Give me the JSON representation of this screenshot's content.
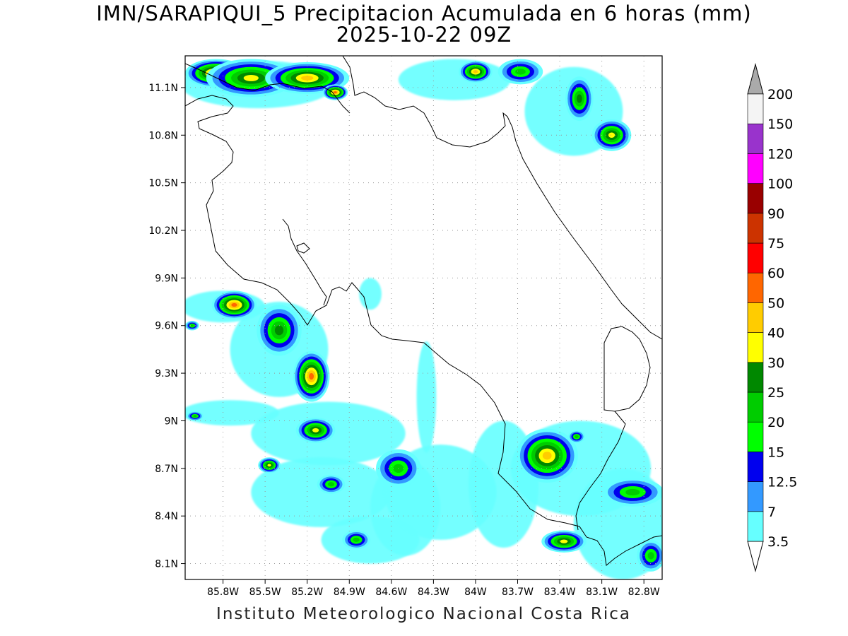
{
  "title": {
    "line1": "IMN/SARAPIQUI_5 Precipitacion Acumulada en 6 horas (mm)",
    "line2": "2025-10-22 09Z"
  },
  "credit": "Instituto Meteorologico Nacional Costa Rica",
  "map": {
    "lon_range": [
      -86.07,
      -82.67
    ],
    "lat_range": [
      8.0,
      11.3
    ],
    "lat_ticks": [
      {
        "value": 11.1,
        "label": "11.1N"
      },
      {
        "value": 10.8,
        "label": "10.8N"
      },
      {
        "value": 10.5,
        "label": "10.5N"
      },
      {
        "value": 10.2,
        "label": "10.2N"
      },
      {
        "value": 9.9,
        "label": "9.9N"
      },
      {
        "value": 9.6,
        "label": "9.6N"
      },
      {
        "value": 9.3,
        "label": "9.3N"
      },
      {
        "value": 9.0,
        "label": "9N"
      },
      {
        "value": 8.7,
        "label": "8.7N"
      },
      {
        "value": 8.4,
        "label": "8.4N"
      },
      {
        "value": 8.1,
        "label": "8.1N"
      }
    ],
    "lon_ticks": [
      {
        "value": -85.8,
        "label": "85.8W"
      },
      {
        "value": -85.5,
        "label": "85.5W"
      },
      {
        "value": -85.2,
        "label": "85.2W"
      },
      {
        "value": -84.9,
        "label": "84.9W"
      },
      {
        "value": -84.6,
        "label": "84.6W"
      },
      {
        "value": -84.3,
        "label": "84.3W"
      },
      {
        "value": -84.0,
        "label": "84W"
      },
      {
        "value": -83.7,
        "label": "83.7W"
      },
      {
        "value": -83.4,
        "label": "83.4W"
      },
      {
        "value": -83.1,
        "label": "83.1W"
      },
      {
        "value": -82.8,
        "label": "82.8W"
      }
    ],
    "grid": "dotted"
  },
  "colorbar": {
    "levels": [
      {
        "label": "3.5",
        "color": "#66ffff"
      },
      {
        "label": "7",
        "color": "#3399ff"
      },
      {
        "label": "12.5",
        "color": "#0000ee"
      },
      {
        "label": "15",
        "color": "#00ff00"
      },
      {
        "label": "20",
        "color": "#00cc00"
      },
      {
        "label": "25",
        "color": "#008800"
      },
      {
        "label": "30",
        "color": "#ffff00"
      },
      {
        "label": "40",
        "color": "#ffcc00"
      },
      {
        "label": "50",
        "color": "#ff6600"
      },
      {
        "label": "60",
        "color": "#ff0000"
      },
      {
        "label": "75",
        "color": "#cc3300"
      },
      {
        "label": "90",
        "color": "#990000"
      },
      {
        "label": "100",
        "color": "#ff00ff"
      },
      {
        "label": "120",
        "color": "#9933cc"
      },
      {
        "label": "150",
        "color": "#f4f4f4"
      },
      {
        "label": "200",
        "color": "#aaaaaa"
      }
    ],
    "bottom_triangle": "#ffffff",
    "top_triangle": "#aaaaaa"
  },
  "precip_cells": [
    {
      "lon": -85.85,
      "lat": 11.19,
      "rx": 0.22,
      "ry": 0.09,
      "level": 8
    },
    {
      "lon": -85.6,
      "lat": 11.16,
      "rx": 0.32,
      "ry": 0.12,
      "level": 6
    },
    {
      "lon": -85.2,
      "lat": 11.16,
      "rx": 0.3,
      "ry": 0.1,
      "level": 7
    },
    {
      "lon": -85.0,
      "lat": 11.07,
      "rx": 0.09,
      "ry": 0.05,
      "level": 8
    },
    {
      "lon": -84.0,
      "lat": 11.2,
      "rx": 0.12,
      "ry": 0.07,
      "level": 7
    },
    {
      "lon": -83.68,
      "lat": 11.2,
      "rx": 0.16,
      "ry": 0.08,
      "level": 4
    },
    {
      "lon": -83.03,
      "lat": 10.8,
      "rx": 0.14,
      "ry": 0.1,
      "level": 6
    },
    {
      "lon": -83.26,
      "lat": 11.03,
      "rx": 0.1,
      "ry": 0.14,
      "level": 5
    },
    {
      "lon": -85.72,
      "lat": 9.73,
      "rx": 0.16,
      "ry": 0.09,
      "level": 8
    },
    {
      "lon": -85.4,
      "lat": 9.57,
      "rx": 0.16,
      "ry": 0.16,
      "level": 5
    },
    {
      "lon": -85.17,
      "lat": 9.28,
      "rx": 0.13,
      "ry": 0.16,
      "level": 8
    },
    {
      "lon": -85.14,
      "lat": 8.94,
      "rx": 0.14,
      "ry": 0.08,
      "level": 6
    },
    {
      "lon": -85.47,
      "lat": 8.72,
      "rx": 0.08,
      "ry": 0.05,
      "level": 6
    },
    {
      "lon": -85.03,
      "lat": 8.6,
      "rx": 0.1,
      "ry": 0.06,
      "level": 4
    },
    {
      "lon": -84.55,
      "lat": 8.7,
      "rx": 0.16,
      "ry": 0.12,
      "level": 4
    },
    {
      "lon": -84.85,
      "lat": 8.25,
      "rx": 0.1,
      "ry": 0.06,
      "level": 4
    },
    {
      "lon": -83.49,
      "lat": 8.78,
      "rx": 0.22,
      "ry": 0.17,
      "level": 7
    },
    {
      "lon": -83.37,
      "lat": 8.24,
      "rx": 0.16,
      "ry": 0.07,
      "level": 6
    },
    {
      "lon": -82.88,
      "lat": 8.55,
      "rx": 0.22,
      "ry": 0.09,
      "level": 4
    },
    {
      "lon": -83.28,
      "lat": 8.9,
      "rx": 0.06,
      "ry": 0.04,
      "level": 4
    },
    {
      "lon": -82.75,
      "lat": 8.15,
      "rx": 0.1,
      "ry": 0.1,
      "level": 4
    },
    {
      "lon": -86.02,
      "lat": 9.6,
      "rx": 0.05,
      "ry": 0.03,
      "level": 4
    },
    {
      "lon": -86.0,
      "lat": 9.03,
      "rx": 0.06,
      "ry": 0.03,
      "level": 4
    }
  ],
  "light_bands": [
    {
      "lon": -85.75,
      "lat": 9.05,
      "rx": 0.35,
      "ry": 0.08
    },
    {
      "lon": -85.05,
      "lat": 8.92,
      "rx": 0.55,
      "ry": 0.2
    },
    {
      "lon": -85.1,
      "lat": 8.55,
      "rx": 0.5,
      "ry": 0.22
    },
    {
      "lon": -84.5,
      "lat": 8.45,
      "rx": 0.25,
      "ry": 0.3
    },
    {
      "lon": -84.75,
      "lat": 8.25,
      "rx": 0.35,
      "ry": 0.15
    },
    {
      "lon": -83.25,
      "lat": 8.7,
      "rx": 0.5,
      "ry": 0.3
    },
    {
      "lon": -82.95,
      "lat": 8.35,
      "rx": 0.35,
      "ry": 0.35
    },
    {
      "lon": -84.25,
      "lat": 8.55,
      "rx": 0.4,
      "ry": 0.3
    },
    {
      "lon": -83.8,
      "lat": 8.6,
      "rx": 0.25,
      "ry": 0.4
    },
    {
      "lon": -85.55,
      "lat": 11.12,
      "rx": 0.55,
      "ry": 0.15
    },
    {
      "lon": -84.15,
      "lat": 11.15,
      "rx": 0.4,
      "ry": 0.13
    },
    {
      "lon": -83.3,
      "lat": 10.95,
      "rx": 0.35,
      "ry": 0.28
    },
    {
      "lon": -85.8,
      "lat": 9.72,
      "rx": 0.3,
      "ry": 0.1
    },
    {
      "lon": -85.4,
      "lat": 9.45,
      "rx": 0.35,
      "ry": 0.3
    },
    {
      "lon": -84.35,
      "lat": 9.15,
      "rx": 0.07,
      "ry": 0.35
    },
    {
      "lon": -84.75,
      "lat": 9.8,
      "rx": 0.08,
      "ry": 0.1
    }
  ]
}
